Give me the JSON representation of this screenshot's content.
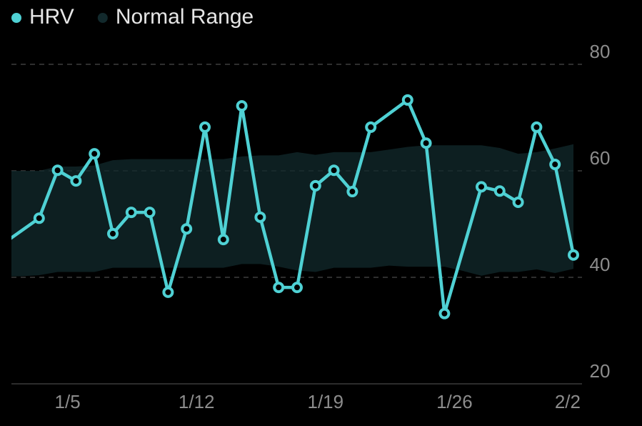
{
  "chart_data": {
    "type": "line",
    "series": [
      {
        "name": "HRV",
        "color": "#4fd1d4",
        "x": [
          "1/2",
          "1/4",
          "1/5",
          "1/6",
          "1/7",
          "1/8",
          "1/9",
          "1/10",
          "1/11",
          "1/12",
          "1/13",
          "1/14",
          "1/15",
          "1/16",
          "1/17",
          "1/18",
          "1/19",
          "1/20",
          "1/21",
          "1/22",
          "1/24",
          "1/25",
          "1/26",
          "1/28",
          "1/29",
          "1/30",
          "1/31",
          "2/1",
          "2/2"
        ],
        "values": [
          46.2,
          51.1,
          60.1,
          58.1,
          63.2,
          48.2,
          52.2,
          52.2,
          37.2,
          49.1,
          68.2,
          47.1,
          72.2,
          51.3,
          38.1,
          38.1,
          57.2,
          60.1,
          56.1,
          68.2,
          73.3,
          65.2,
          33.2,
          57.0,
          56.2,
          54.1,
          68.2,
          61.2,
          44.2
        ]
      }
    ],
    "band": {
      "name": "Normal Range",
      "color": "#12292c",
      "x": [
        "1/2",
        "1/3",
        "1/4",
        "1/5",
        "1/6",
        "1/7",
        "1/8",
        "1/9",
        "1/10",
        "1/11",
        "1/12",
        "1/13",
        "1/14",
        "1/15",
        "1/16",
        "1/17",
        "1/18",
        "1/19",
        "1/20",
        "1/21",
        "1/22",
        "1/23",
        "1/24",
        "1/25",
        "1/26",
        "1/27",
        "1/28",
        "1/29",
        "1/30",
        "1/31",
        "2/1",
        "2/2"
      ],
      "high": [
        60.0,
        60.0,
        60.0,
        60.8,
        60.8,
        61.0,
        62.0,
        62.2,
        62.2,
        62.2,
        62.2,
        62.2,
        62.2,
        62.7,
        62.9,
        62.9,
        63.5,
        63.0,
        63.5,
        63.5,
        63.5,
        64.0,
        64.5,
        64.8,
        64.8,
        64.8,
        64.8,
        64.3,
        63.2,
        63.5,
        64.2,
        65.0
      ],
      "low": [
        40.2,
        40.2,
        40.4,
        41.0,
        41.0,
        41.0,
        41.8,
        41.8,
        41.8,
        41.8,
        41.8,
        41.8,
        41.8,
        42.5,
        42.5,
        42.0,
        41.3,
        41.0,
        41.8,
        41.8,
        41.8,
        42.2,
        42.0,
        42.0,
        42.0,
        41.2,
        40.3,
        41.0,
        41.0,
        41.5,
        40.8,
        41.6
      ]
    },
    "ylim": [
      20,
      80
    ],
    "yticks": [
      20,
      40,
      60,
      80
    ],
    "xticks": [
      "1/5",
      "1/12",
      "1/19",
      "1/26",
      "2/2"
    ],
    "grid": true
  }
}
